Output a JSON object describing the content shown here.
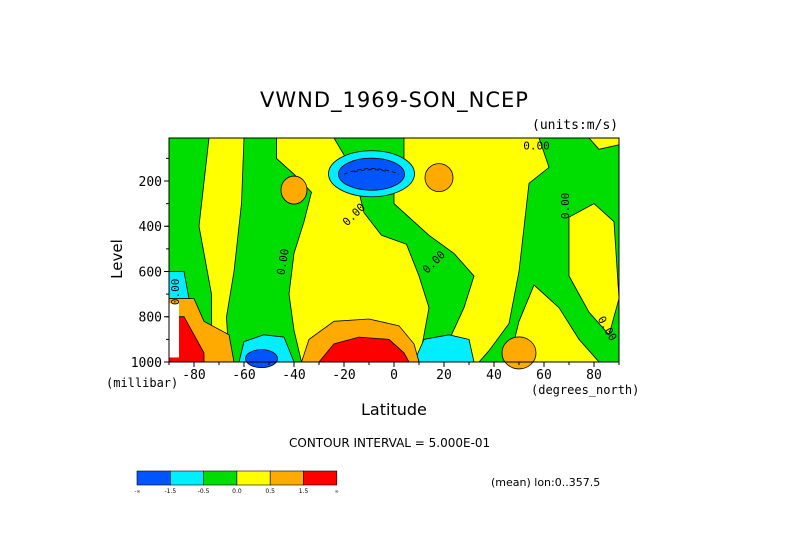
{
  "chart_data": {
    "type": "contour",
    "title": "VWND_1969-SON_NCEP",
    "units_note": "(units:m/s)",
    "xlabel": "Latitude",
    "x_units": "(degrees_north)",
    "ylabel": "Level",
    "y_units": "(millibar)",
    "xlim": [
      -90,
      90
    ],
    "ylim": [
      1000,
      10
    ],
    "x_ticks": [
      -80,
      -60,
      -40,
      -20,
      0,
      20,
      40,
      60,
      80
    ],
    "y_ticks": [
      200,
      400,
      600,
      800,
      1000
    ],
    "contour_interval_text": "CONTOUR INTERVAL = 5.000E-01",
    "footer_note": "(mean) lon:0..357.5",
    "contour_labels": [
      "0.00",
      "0.00",
      "0.00",
      "0.00",
      "0.00",
      "0.00",
      "0.00"
    ],
    "colorbar": {
      "levels": [
        "-1.5",
        "-0.5",
        "0.0",
        "0.5",
        "1.5"
      ],
      "colors": [
        "#0055ff",
        "#00eeff",
        "#00dd00",
        "#ffff00",
        "#ffaa00",
        "#ff0000"
      ]
    },
    "regions": [
      {
        "value_class": "negative_strong",
        "lat_center": -10,
        "lev_center": 170,
        "color": "#0055ff"
      },
      {
        "value_class": "negative_strong",
        "lat_center": -53,
        "lev_center": 990,
        "color": "#0055ff"
      },
      {
        "value_class": "positive_strong",
        "lat_center": -10,
        "lev_center": 980,
        "color": "#ff0000"
      },
      {
        "value_class": "positive_strong",
        "lat_center": -85,
        "lev_center": 960,
        "color": "#ff0000"
      },
      {
        "value_class": "positive_mid",
        "lat_center": -40,
        "lev_center": 240,
        "color": "#ffaa00"
      },
      {
        "value_class": "positive_mid",
        "lat_center": 20,
        "lev_center": 180,
        "color": "#ffaa00"
      },
      {
        "value_class": "positive_mid",
        "lat_center": 50,
        "lev_center": 960,
        "color": "#ffaa00"
      },
      {
        "value_class": "negative_weak",
        "lat_center": 20,
        "lev_center": 970,
        "color": "#00eeff"
      }
    ]
  }
}
